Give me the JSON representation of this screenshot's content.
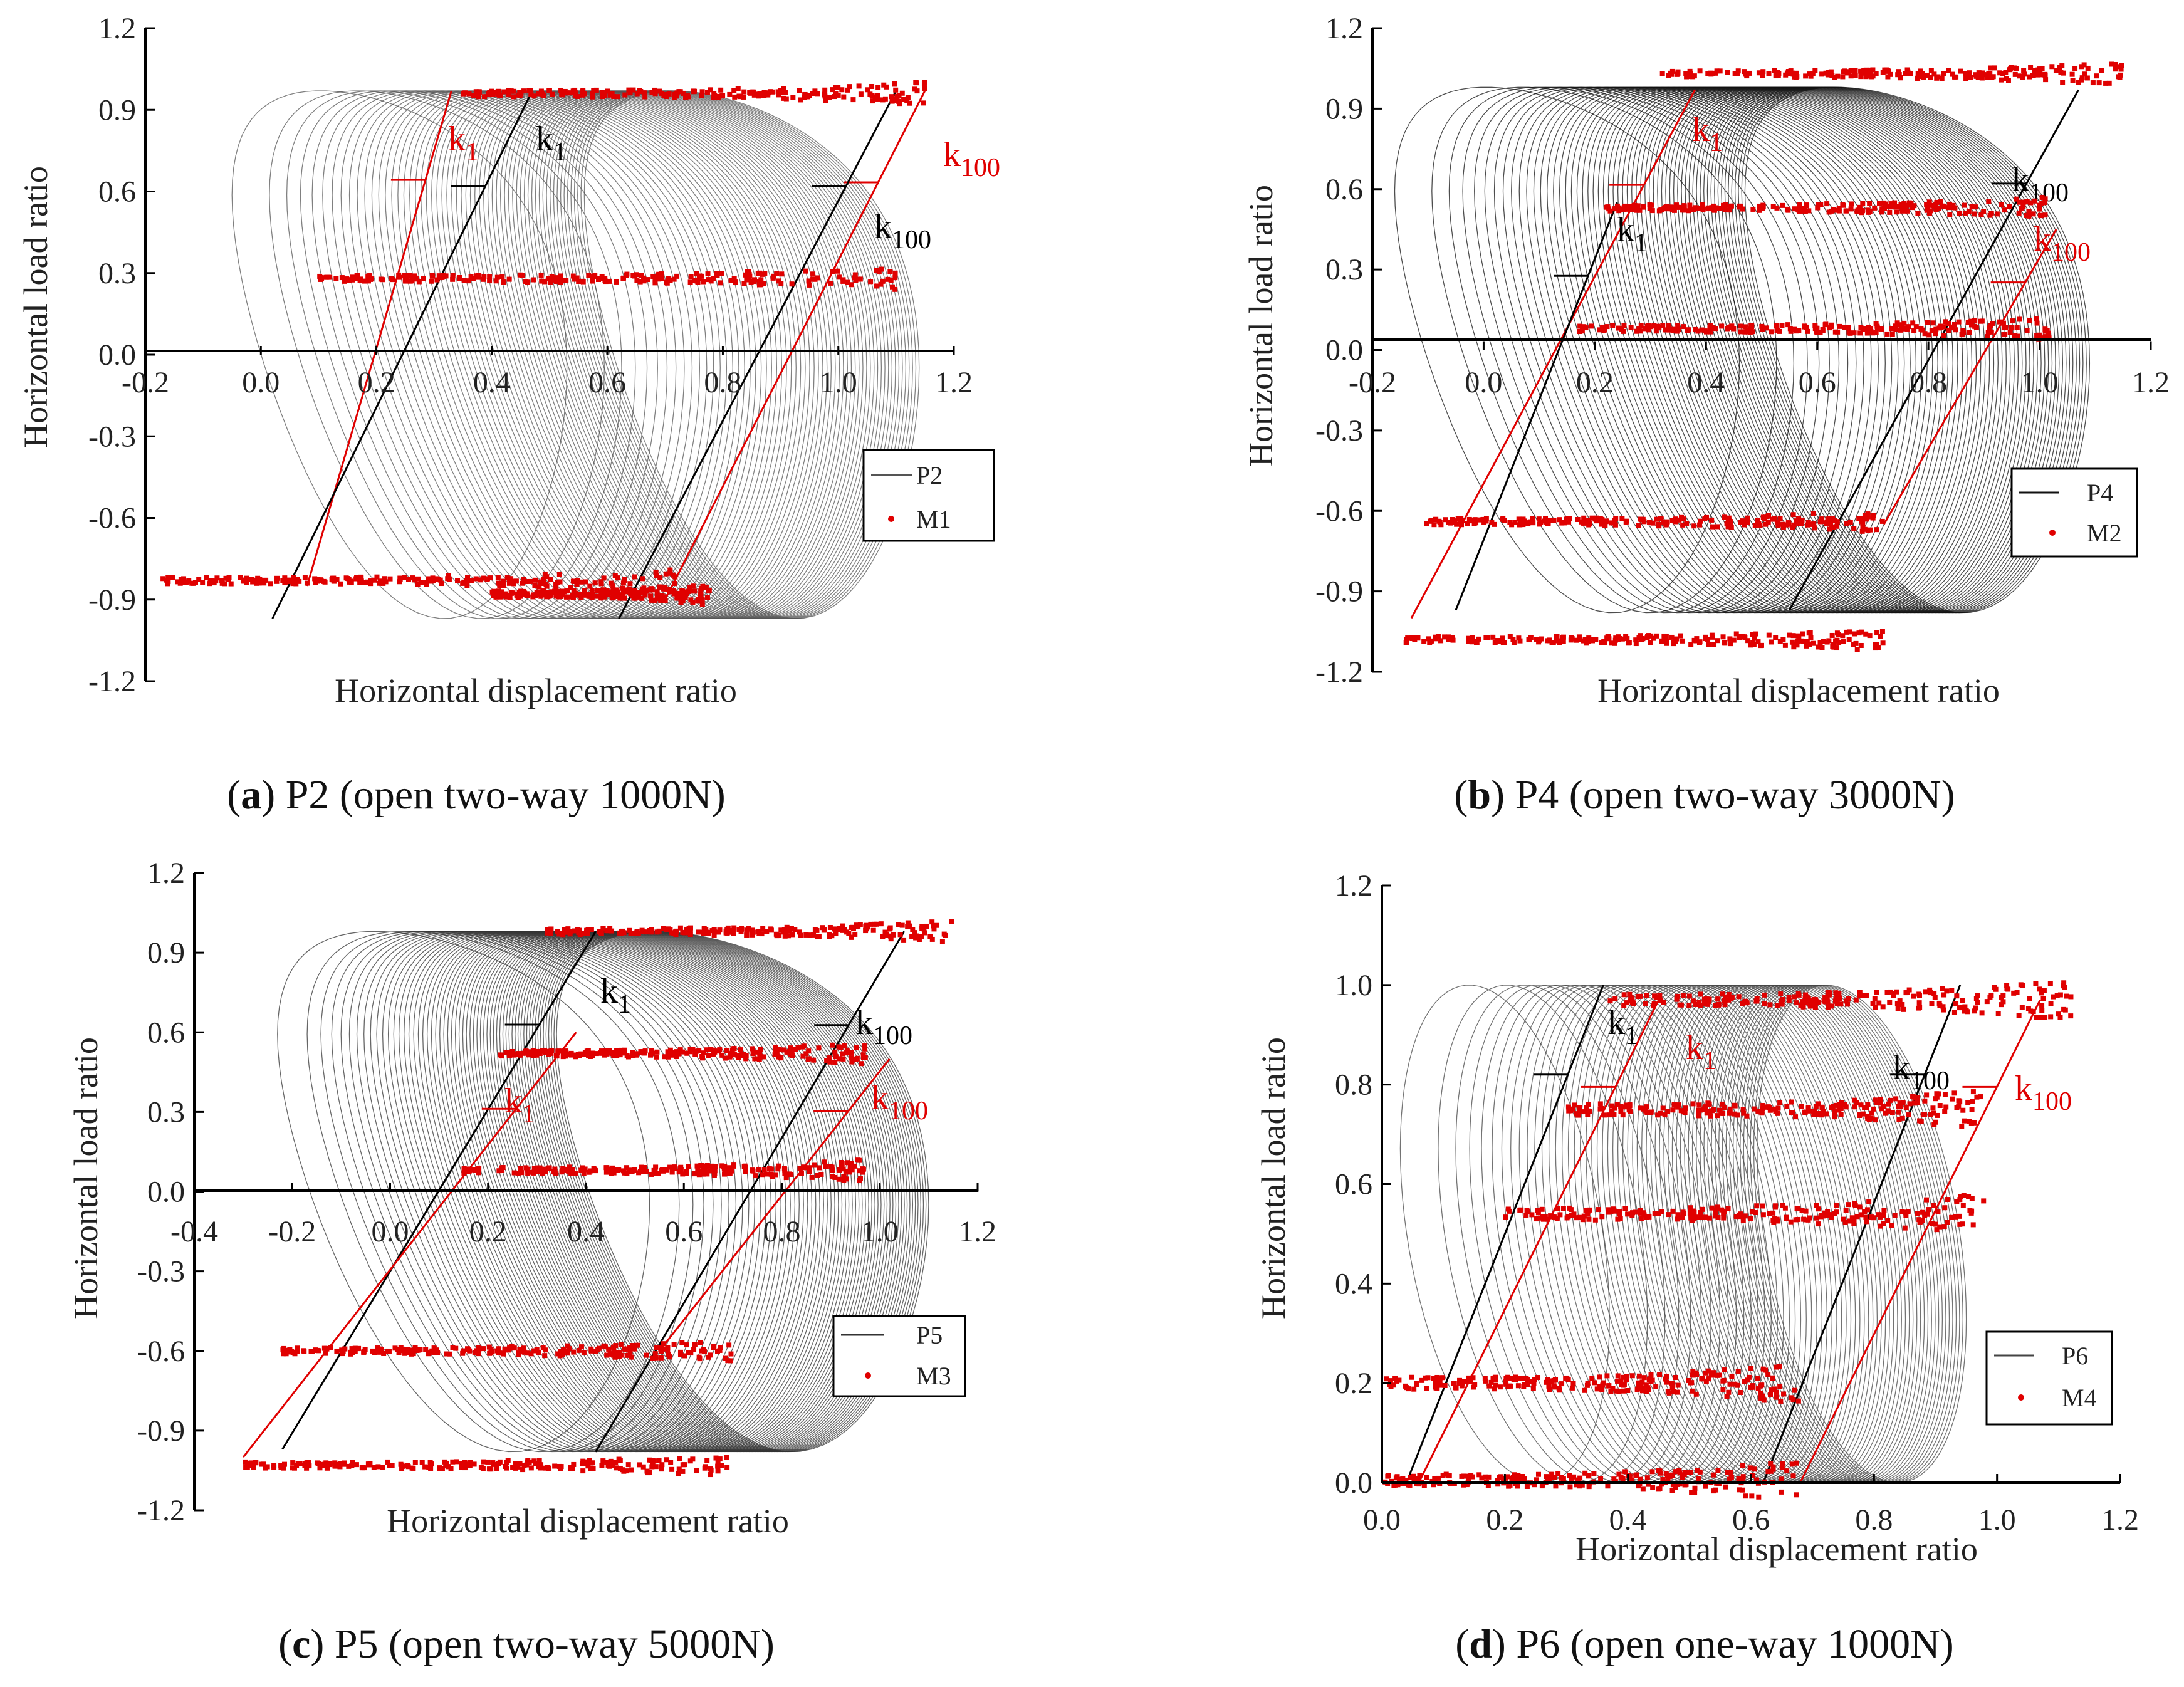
{
  "figure": {
    "panels": [
      {
        "letter": "a",
        "caption_rest": " P2 (open two-way 1000N)",
        "xlabel": "Horizontal displacement ratio",
        "ylabel": "Horizontal load ratio",
        "legend": [
          "P2",
          "M1"
        ],
        "k_labels": [
          {
            "text": "k",
            "sub": "1",
            "color": "#e00000"
          },
          {
            "text": "k",
            "sub": "1",
            "color": "#000000"
          },
          {
            "text": "k",
            "sub": "100",
            "color": "#e00000"
          },
          {
            "text": "k",
            "sub": "100",
            "color": "#000000"
          }
        ]
      },
      {
        "letter": "b",
        "caption_rest": " P4 (open two-way 3000N)",
        "xlabel": "Horizontal displacement ratio",
        "ylabel": "Horizontal load ratio",
        "legend": [
          "P4",
          "M2"
        ],
        "k_labels": [
          {
            "text": "k",
            "sub": "1",
            "color": "#e00000"
          },
          {
            "text": "k",
            "sub": "1",
            "color": "#000000"
          },
          {
            "text": "k",
            "sub": "100",
            "color": "#000000"
          },
          {
            "text": "k",
            "sub": "100",
            "color": "#e00000"
          }
        ]
      },
      {
        "letter": "c",
        "caption_rest": " P5 (open two-way 5000N)",
        "xlabel": "Horizontal displacement ratio",
        "ylabel": "Horizontal load ratio",
        "legend": [
          "P5",
          "M3"
        ],
        "k_labels": [
          {
            "text": "k",
            "sub": "1",
            "color": "#000000"
          },
          {
            "text": "k",
            "sub": "1",
            "color": "#e00000"
          },
          {
            "text": "k",
            "sub": "100",
            "color": "#000000"
          },
          {
            "text": "k",
            "sub": "100",
            "color": "#e00000"
          }
        ]
      },
      {
        "letter": "d",
        "caption_rest": " P6 (open one-way 1000N)",
        "xlabel": "Horizontal displacement ratio",
        "ylabel": "Horizontal load ratio",
        "legend": [
          "P6",
          "M4"
        ],
        "k_labels": [
          {
            "text": "k",
            "sub": "1",
            "color": "#000000"
          },
          {
            "text": "k",
            "sub": "1",
            "color": "#e00000"
          },
          {
            "text": "k",
            "sub": "100",
            "color": "#000000"
          },
          {
            "text": "k",
            "sub": "100",
            "color": "#e00000"
          }
        ]
      }
    ]
  },
  "chart_data": [
    {
      "type": "line",
      "title": "(a) P2 (open two-way 1000N)",
      "xlabel": "Horizontal displacement ratio",
      "ylabel": "Horizontal load ratio",
      "xlim": [
        -0.2,
        1.2
      ],
      "ylim": [
        -1.2,
        1.2
      ],
      "x_ticks": [
        "-0.2",
        "0.0",
        "0.2",
        "0.4",
        "0.6",
        "0.8",
        "1.0",
        "1.2"
      ],
      "y_ticks": [
        "-1.2",
        "-0.9",
        "-0.6",
        "-0.3",
        "0.0",
        "0.3",
        "0.6",
        "0.9",
        "1.2"
      ],
      "series": [
        {
          "name": "P2",
          "kind": "hysteresis loops",
          "color": "#555555",
          "loops": {
            "count": 100,
            "center_start": 0.24,
            "center_end": 0.85,
            "half_width": 0.29,
            "amplitude": 0.97
          }
        },
        {
          "name": "M1",
          "kind": "scatter",
          "color": "#e00000",
          "bands": [
            {
              "x": [
                0.35,
                1.15
              ],
              "y": 0.96
            },
            {
              "x": [
                0.1,
                1.1
              ],
              "y": 0.28
            },
            {
              "x": [
                -0.17,
                0.72
              ],
              "y": -0.83
            },
            {
              "x": [
                0.4,
                0.78
              ],
              "y": -0.88
            }
          ]
        }
      ],
      "stiffness_lines": [
        {
          "label": "k1",
          "color": "#e00000",
          "x": [
            0.08,
            0.33
          ],
          "y": [
            -0.85,
            0.97
          ]
        },
        {
          "label": "k1",
          "color": "#000000",
          "x": [
            0.02,
            0.47
          ],
          "y": [
            -0.97,
            0.97
          ]
        },
        {
          "label": "k100",
          "color": "#e00000",
          "x": [
            0.7,
            1.15
          ],
          "y": [
            -0.9,
            0.97
          ]
        },
        {
          "label": "k100",
          "color": "#000000",
          "x": [
            0.62,
            1.1
          ],
          "y": [
            -0.97,
            0.97
          ]
        }
      ]
    },
    {
      "type": "line",
      "title": "(b) P4 (open two-way 3000N)",
      "xlabel": "Horizontal displacement ratio",
      "ylabel": "Horizontal load ratio",
      "xlim": [
        -0.2,
        1.2
      ],
      "ylim": [
        -1.2,
        1.2
      ],
      "x_ticks": [
        "-0.2",
        "0.0",
        "0.2",
        "0.4",
        "0.6",
        "0.8",
        "1.0",
        "1.2"
      ],
      "y_ticks": [
        "-1.2",
        "-0.9",
        "-0.6",
        "-0.3",
        "0.0",
        "0.3",
        "0.6",
        "0.9",
        "1.2"
      ],
      "series": [
        {
          "name": "P4",
          "kind": "hysteresis loops",
          "color": "#111111",
          "loops": {
            "count": 100,
            "center_start": 0.15,
            "center_end": 0.78,
            "half_width": 0.31,
            "amplitude": 0.98
          }
        },
        {
          "name": "M2",
          "kind": "scatter",
          "color": "#e00000",
          "bands": [
            {
              "x": [
                0.32,
                1.15
              ],
              "y": 1.03
            },
            {
              "x": [
                0.22,
                1.02
              ],
              "y": 0.53
            },
            {
              "x": [
                0.17,
                1.02
              ],
              "y": 0.08
            },
            {
              "x": [
                -0.12,
                0.72
              ],
              "y": -0.64
            },
            {
              "x": [
                -0.14,
                0.72
              ],
              "y": -1.08
            }
          ]
        }
      ],
      "stiffness_lines": [
        {
          "label": "k1",
          "color": "#e00000",
          "x": [
            -0.13,
            0.38
          ],
          "y": [
            -1.0,
            0.97
          ]
        },
        {
          "label": "k1",
          "color": "#000000",
          "x": [
            -0.05,
            0.24
          ],
          "y": [
            -0.97,
            0.55
          ]
        },
        {
          "label": "k100",
          "color": "#000000",
          "x": [
            0.55,
            1.07
          ],
          "y": [
            -0.97,
            0.97
          ]
        },
        {
          "label": "k100",
          "color": "#e00000",
          "x": [
            0.72,
            1.03
          ],
          "y": [
            -0.65,
            0.45
          ]
        }
      ]
    },
    {
      "type": "line",
      "title": "(c) P5 (open two-way 5000N)",
      "xlabel": "Horizontal displacement ratio",
      "ylabel": "Horizontal load ratio",
      "xlim": [
        -0.4,
        1.2
      ],
      "ylim": [
        -1.2,
        1.2
      ],
      "x_ticks": [
        "-0.4",
        "-0.2",
        "0.0",
        "0.2",
        "0.4",
        "0.6",
        "0.8",
        "1.0",
        "1.2"
      ],
      "y_ticks": [
        "-1.2",
        "-0.9",
        "-0.6",
        "-0.3",
        "0.0",
        "0.3",
        "0.6",
        "0.9",
        "1.2"
      ],
      "series": [
        {
          "name": "P5",
          "kind": "hysteresis loops",
          "color": "#333333",
          "loops": {
            "count": 100,
            "center_start": 0.15,
            "center_end": 0.72,
            "half_width": 0.38,
            "amplitude": 0.98
          }
        },
        {
          "name": "M3",
          "kind": "scatter",
          "color": "#e00000",
          "bands": [
            {
              "x": [
                0.32,
                1.15
              ],
              "y": 0.98
            },
            {
              "x": [
                0.2,
                0.98
              ],
              "y": 0.52
            },
            {
              "x": [
                0.15,
                0.97
              ],
              "y": 0.08
            },
            {
              "x": [
                -0.22,
                0.7
              ],
              "y": -0.6
            },
            {
              "x": [
                -0.3,
                0.7
              ],
              "y": -1.03
            }
          ]
        }
      ],
      "stiffness_lines": [
        {
          "label": "k1",
          "color": "#000000",
          "x": [
            -0.22,
            0.42
          ],
          "y": [
            -0.97,
            0.98
          ]
        },
        {
          "label": "k1",
          "color": "#e00000",
          "x": [
            -0.3,
            0.38
          ],
          "y": [
            -1.0,
            0.6
          ]
        },
        {
          "label": "k100",
          "color": "#000000",
          "x": [
            0.42,
            1.05
          ],
          "y": [
            -0.98,
            0.98
          ]
        },
        {
          "label": "k100",
          "color": "#e00000",
          "x": [
            0.55,
            1.02
          ],
          "y": [
            -0.6,
            0.5
          ]
        }
      ]
    },
    {
      "type": "line",
      "title": "(d) P6 (open one-way 1000N)",
      "xlabel": "Horizontal displacement ratio",
      "ylabel": "Horizontal load ratio",
      "xlim": [
        0.0,
        1.2
      ],
      "ylim": [
        0.0,
        1.2
      ],
      "x_ticks": [
        "0.0",
        "0.2",
        "0.4",
        "0.6",
        "0.8",
        "1.0",
        "1.2"
      ],
      "y_ticks": [
        "0.0",
        "0.2",
        "0.4",
        "0.6",
        "0.8",
        "1.0",
        "1.2"
      ],
      "series": [
        {
          "name": "P6",
          "kind": "hysteresis loops",
          "color": "#444444",
          "loops": {
            "count": 100,
            "center_start": 0.2,
            "center_end": 0.78,
            "half_width": 0.17,
            "amplitude": 1.0
          }
        },
        {
          "name": "M4",
          "kind": "scatter",
          "color": "#e00000",
          "bands": [
            {
              "x": [
                0.36,
                1.12
              ],
              "y": 0.97
            },
            {
              "x": [
                0.3,
                0.98
              ],
              "y": 0.75
            },
            {
              "x": [
                0.2,
                0.98
              ],
              "y": 0.54
            },
            {
              "x": [
                0.0,
                0.68
              ],
              "y": 0.2
            },
            {
              "x": [
                0.0,
                0.68
              ],
              "y": 0.005
            }
          ]
        }
      ],
      "stiffness_lines": [
        {
          "label": "k1",
          "color": "#000000",
          "x": [
            0.04,
            0.36
          ],
          "y": [
            0.0,
            1.0
          ]
        },
        {
          "label": "k1",
          "color": "#e00000",
          "x": [
            0.06,
            0.45
          ],
          "y": [
            0.0,
            0.97
          ]
        },
        {
          "label": "k100",
          "color": "#000000",
          "x": [
            0.62,
            0.94
          ],
          "y": [
            0.0,
            1.0
          ]
        },
        {
          "label": "k100",
          "color": "#e00000",
          "x": [
            0.68,
            1.07
          ],
          "y": [
            0.0,
            0.97
          ]
        }
      ]
    }
  ]
}
